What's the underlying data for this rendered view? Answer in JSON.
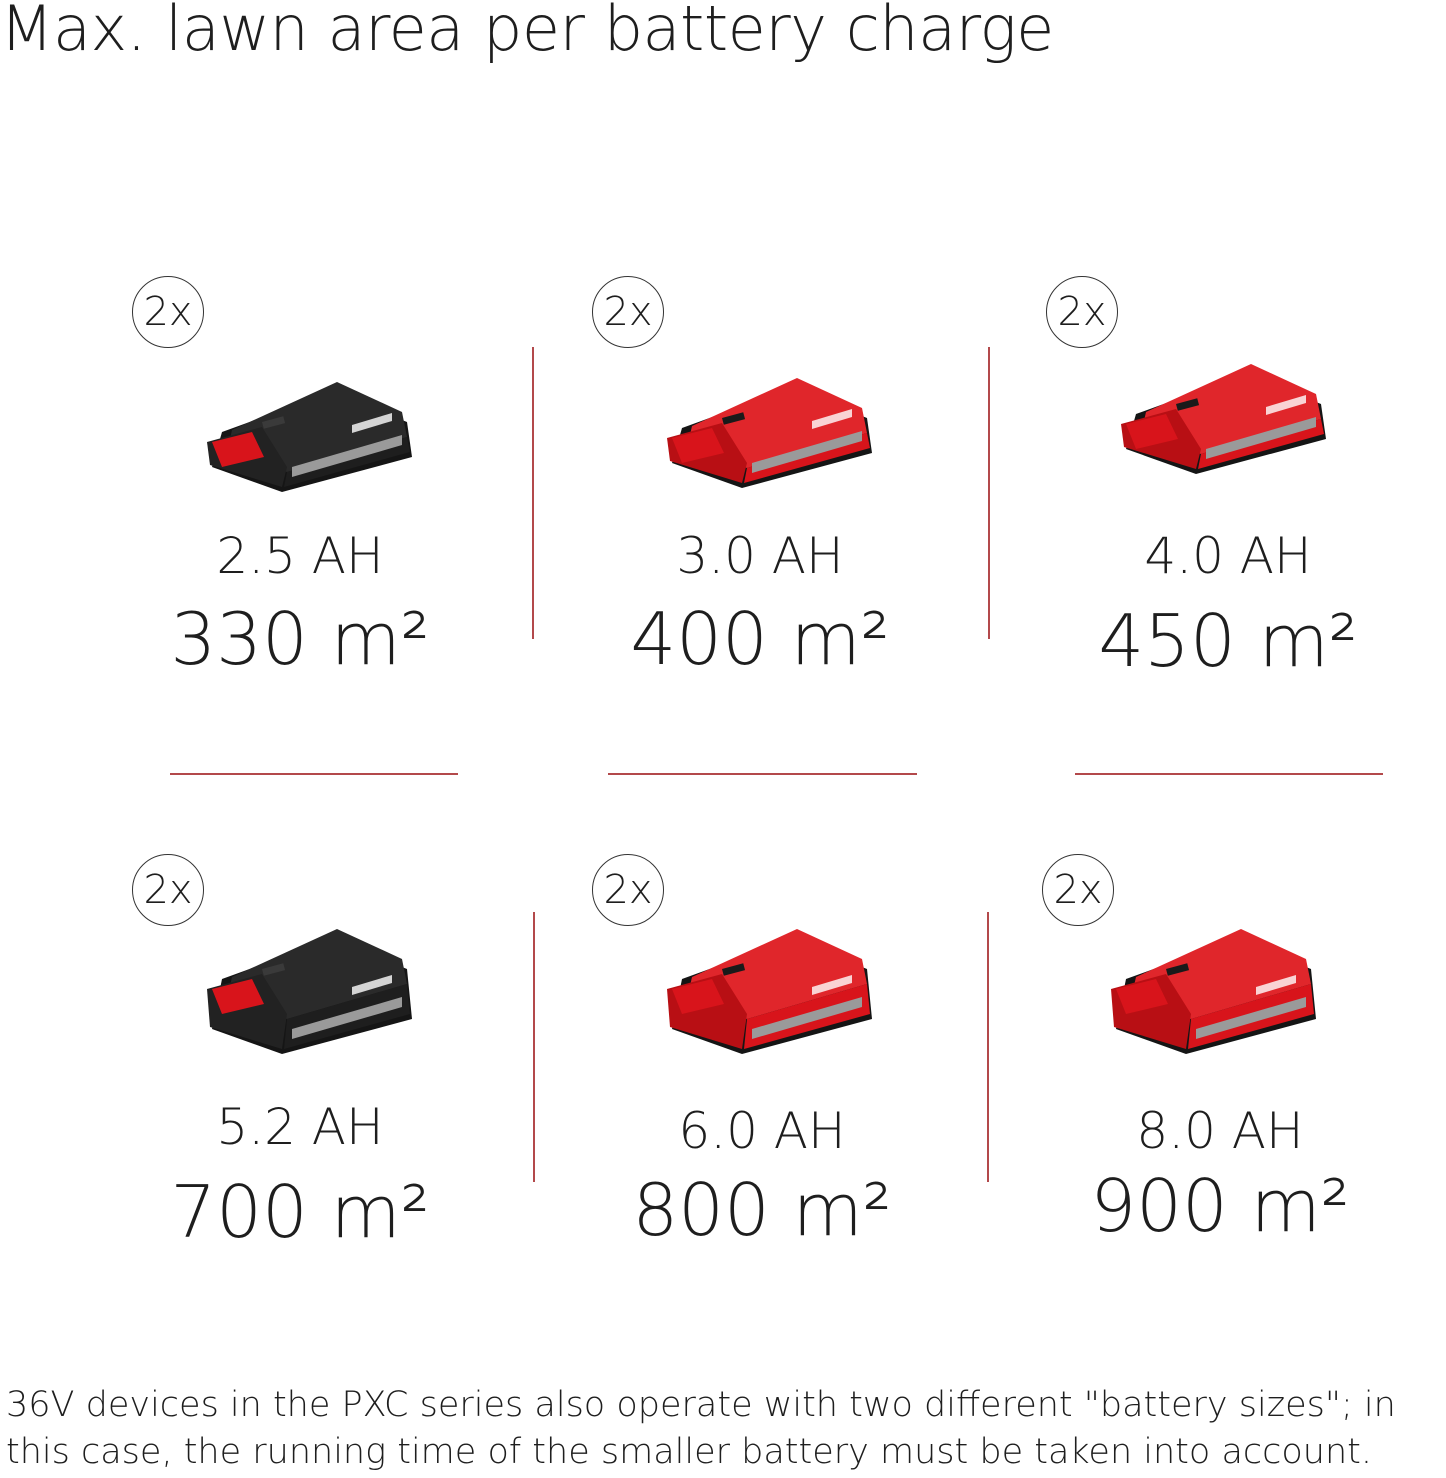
{
  "title": "Max. lawn area per battery charge",
  "accent_color": "#b3494b",
  "batteries": [
    {
      "quantity": "2x",
      "capacity": "2.5 AH",
      "area": "330 m²",
      "body": "black",
      "icon": "battery-icon"
    },
    {
      "quantity": "2x",
      "capacity": "3.0 AH",
      "area": "400 m²",
      "body": "red",
      "icon": "battery-icon"
    },
    {
      "quantity": "2x",
      "capacity": "4.0 AH",
      "area": "450 m²",
      "body": "red",
      "icon": "battery-icon"
    },
    {
      "quantity": "2x",
      "capacity": "5.2 AH",
      "area": "700 m²",
      "body": "black",
      "icon": "battery-icon"
    },
    {
      "quantity": "2x",
      "capacity": "6.0 AH",
      "area": "800 m²",
      "body": "red",
      "icon": "battery-icon"
    },
    {
      "quantity": "2x",
      "capacity": "8.0 AH",
      "area": "900 m²",
      "body": "red",
      "icon": "battery-icon"
    }
  ],
  "footnote": "36V devices in the PXC series also operate with two different \"battery sizes\"; in this case, the running time of the smaller battery must be taken into account."
}
